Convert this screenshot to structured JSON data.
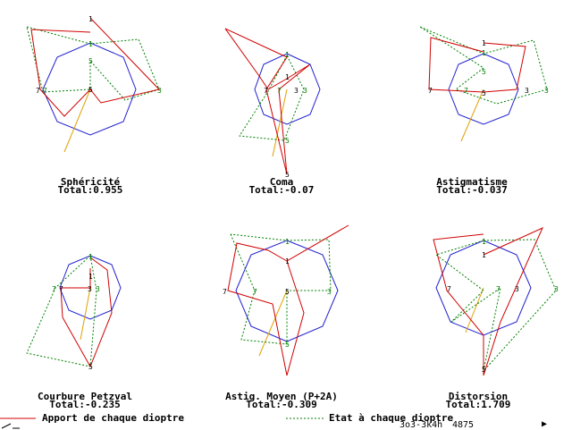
{
  "colors": {
    "apport": "#d00000",
    "etat": "#008000",
    "circle": "#2020d0",
    "axis": "#e0a000",
    "text": "#000000"
  },
  "plots": [
    {
      "title": "Sphéricité",
      "total": "Total:0.955",
      "labels": [
        {
          "text": "1",
          "color": "black"
        },
        {
          "text": "1",
          "color": "green"
        },
        {
          "text": "5",
          "color": "green"
        },
        {
          "text": "7",
          "color": "black"
        },
        {
          "text": "7",
          "color": "green"
        },
        {
          "text": "5",
          "color": "black"
        },
        {
          "text": "3",
          "color": "green"
        }
      ]
    },
    {
      "title": "Coma",
      "total": "Total:-0.07",
      "labels": [
        {
          "text": "1",
          "color": "green"
        },
        {
          "text": "1",
          "color": "black"
        },
        {
          "text": "7",
          "color": "black"
        },
        {
          "text": "7",
          "color": "green"
        },
        {
          "text": "3",
          "color": "black"
        },
        {
          "text": "3",
          "color": "green"
        },
        {
          "text": "5",
          "color": "green"
        },
        {
          "text": "5",
          "color": "black"
        }
      ]
    },
    {
      "title": "Astigmatisme",
      "total": "Total:-0.037",
      "labels": [
        {
          "text": "1",
          "color": "black"
        },
        {
          "text": "1",
          "color": "green"
        },
        {
          "text": "5",
          "color": "green"
        },
        {
          "text": "7",
          "color": "black"
        },
        {
          "text": "7",
          "color": "green"
        },
        {
          "text": "5",
          "color": "black"
        },
        {
          "text": "3",
          "color": "black"
        },
        {
          "text": "3",
          "color": "green"
        }
      ]
    },
    {
      "title": "Courbure Petzval",
      "total": "Total:-0.235",
      "labels": [
        {
          "text": "1",
          "color": "green"
        },
        {
          "text": "1",
          "color": "black"
        },
        {
          "text": "7",
          "color": "black"
        },
        {
          "text": "7",
          "color": "green"
        },
        {
          "text": "3",
          "color": "black"
        },
        {
          "text": "3",
          "color": "green"
        },
        {
          "text": "5",
          "color": "black"
        }
      ]
    },
    {
      "title": "Astig. Moyen (P+2A)",
      "total": "Total:-0.309",
      "labels": [
        {
          "text": "1",
          "color": "green"
        },
        {
          "text": "1",
          "color": "black"
        },
        {
          "text": "7",
          "color": "black"
        },
        {
          "text": "7",
          "color": "green"
        },
        {
          "text": "5",
          "color": "black"
        },
        {
          "text": "3",
          "color": "green"
        },
        {
          "text": "5",
          "color": "green"
        }
      ]
    },
    {
      "title": "Distorsion",
      "total": "Total:1.709",
      "labels": [
        {
          "text": "1",
          "color": "green"
        },
        {
          "text": "1",
          "color": "black"
        },
        {
          "text": "7",
          "color": "black"
        },
        {
          "text": "7",
          "color": "green"
        },
        {
          "text": "3",
          "color": "black"
        },
        {
          "text": "3",
          "color": "green"
        },
        {
          "text": "5",
          "color": "black"
        }
      ]
    }
  ],
  "legend": {
    "apport": "Apport de chaque dioptre",
    "etat": "Etat à chaque dioptre"
  },
  "status": {
    "code": "3o3-3k4h",
    "number": "4875",
    "arrow": "▶"
  }
}
